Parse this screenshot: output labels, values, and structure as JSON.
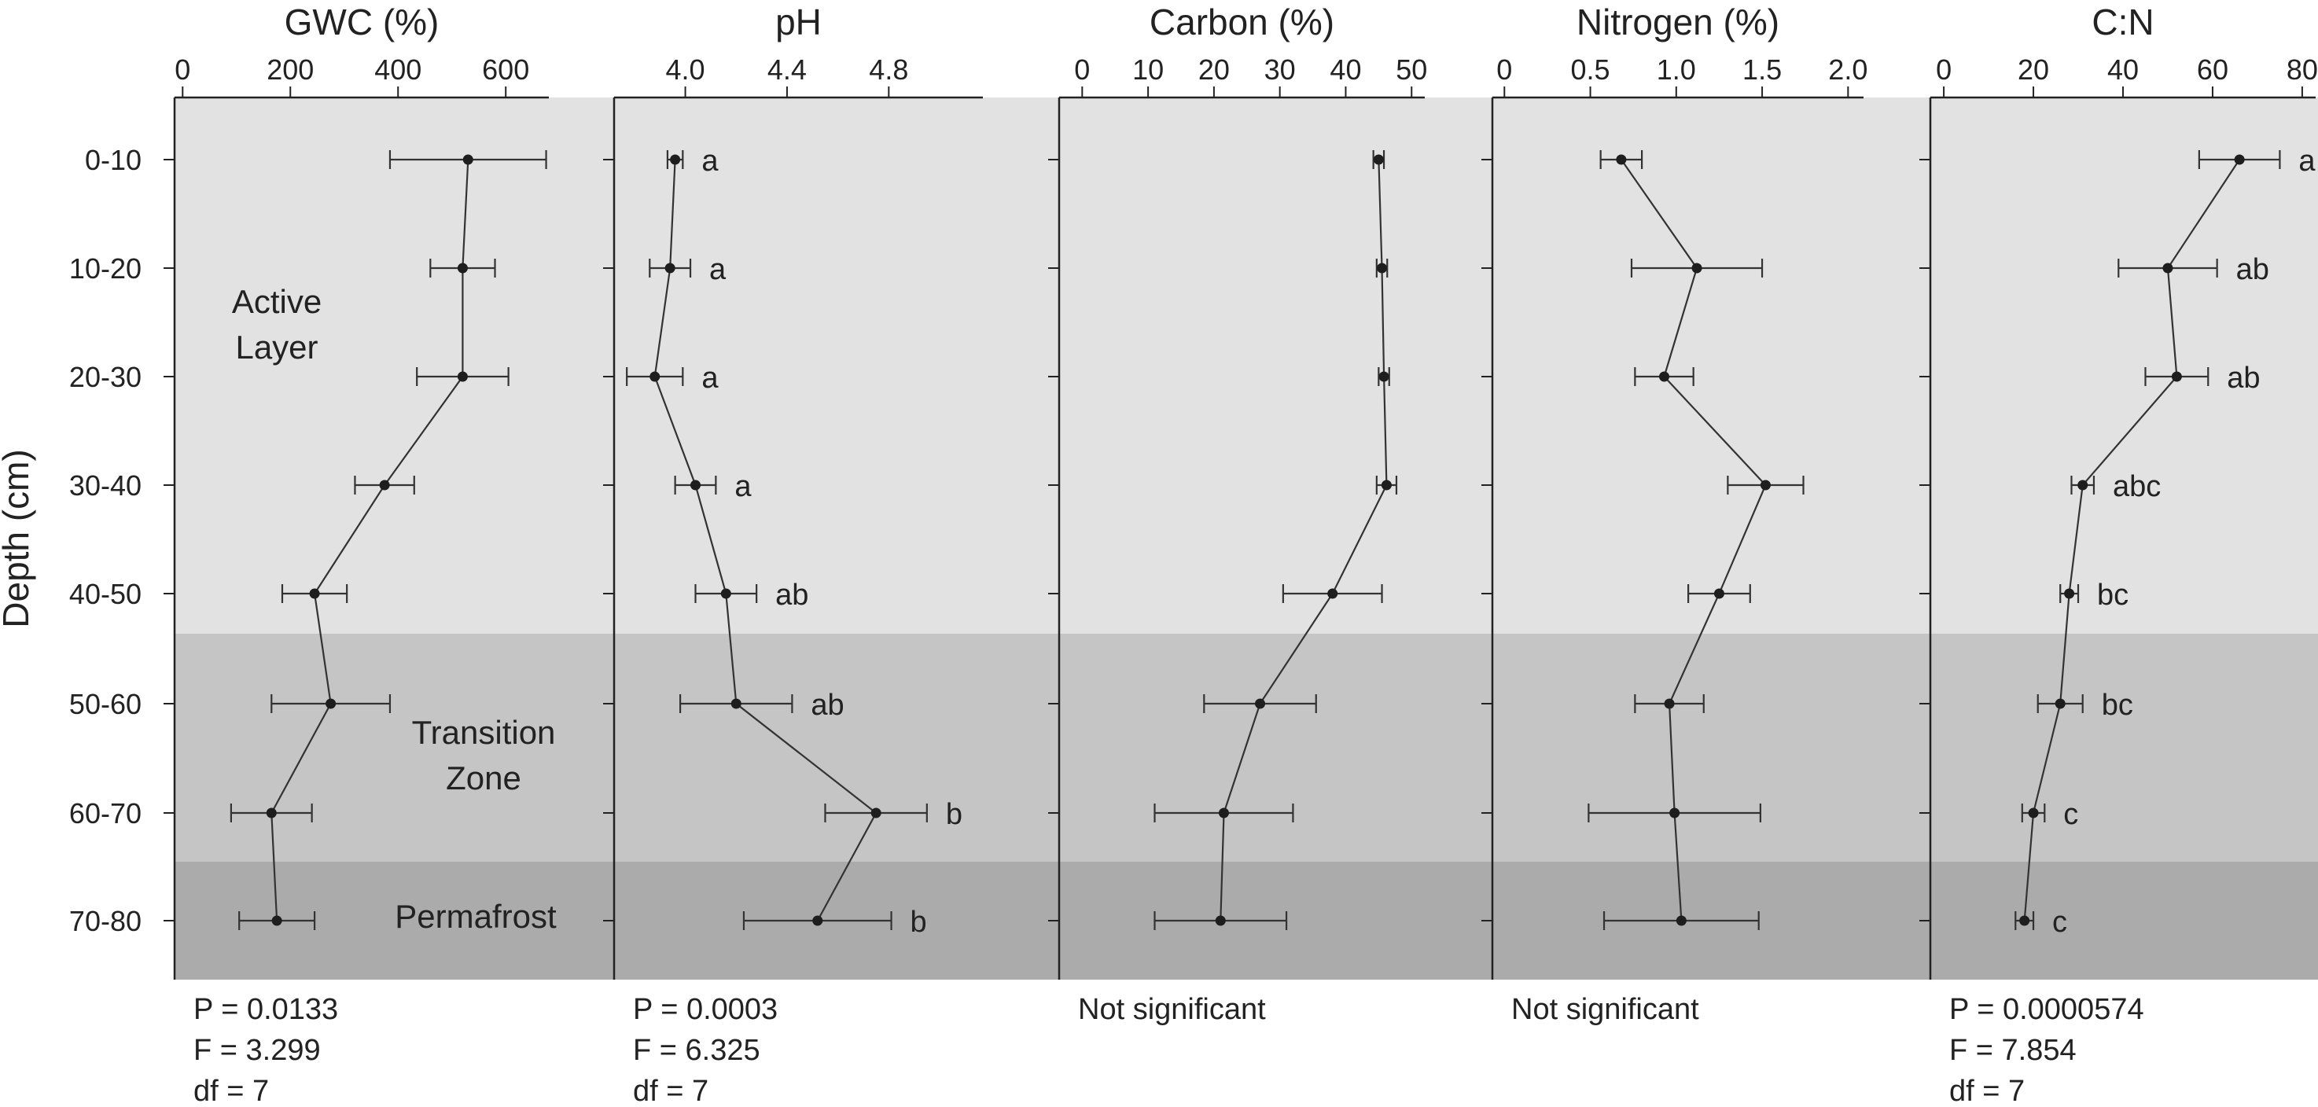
{
  "chart_data": {
    "type": "line",
    "orientation": "depth-profile",
    "ylabel": "Depth (cm)",
    "depth_categories": [
      "0-10",
      "10-20",
      "20-30",
      "30-40",
      "40-50",
      "50-60",
      "60-70",
      "70-80"
    ],
    "zones": [
      {
        "label_lines": [
          "Active",
          "Layer"
        ],
        "from": "0-10",
        "to": "40-50",
        "color": "#e2e2e2"
      },
      {
        "label_lines": [
          "Transition",
          "Zone"
        ],
        "from": "50-60",
        "to": "60-70",
        "color": "#c6c5c6"
      },
      {
        "label_lines": [
          "Permafrost"
        ],
        "from": "70-80",
        "to": "70-80",
        "color": "#ababab"
      }
    ],
    "panels": [
      {
        "title": "GWC (%)",
        "xlim": [
          -15,
          680
        ],
        "ticks": [
          0,
          200,
          400,
          600
        ],
        "tick_labels": [
          "0",
          "200",
          "400",
          "600"
        ],
        "values": [
          530,
          520,
          520,
          375,
          245,
          275,
          165,
          175
        ],
        "errors": [
          145,
          60,
          85,
          55,
          60,
          110,
          75,
          70
        ],
        "letters": [],
        "stats": [
          "P = 0.0133",
          "F = 3.299",
          "df = 7"
        ]
      },
      {
        "title": "pH",
        "xlim": [
          3.72,
          5.17
        ],
        "ticks": [
          4.0,
          4.4,
          4.8
        ],
        "tick_labels": [
          "4.0",
          "4.4",
          "4.8"
        ],
        "values": [
          3.96,
          3.94,
          3.88,
          4.04,
          4.16,
          4.2,
          4.75,
          4.52
        ],
        "errors": [
          0.03,
          0.08,
          0.11,
          0.08,
          0.12,
          0.22,
          0.2,
          0.29
        ],
        "letters": [
          "a",
          "a",
          "a",
          "a",
          "ab",
          "ab",
          "b",
          "b"
        ],
        "stats": [
          "P = 0.0003",
          "F = 6.325",
          "df = 7"
        ]
      },
      {
        "title": "Carbon (%)",
        "xlim": [
          -3.5,
          52
        ],
        "ticks": [
          0,
          10,
          20,
          30,
          40,
          50
        ],
        "tick_labels": [
          "0",
          "10",
          "20",
          "30",
          "40",
          "50"
        ],
        "values": [
          45,
          45.5,
          45.8,
          46.2,
          38,
          27,
          21.5,
          21
        ],
        "errors": [
          0.8,
          0.8,
          0.8,
          1.5,
          7.5,
          8.5,
          10.5,
          10
        ],
        "letters": [],
        "stats": [
          "Not significant"
        ]
      },
      {
        "title": "Nitrogen (%)",
        "xlim": [
          -0.07,
          2.09
        ],
        "ticks": [
          0,
          0.5,
          1.0,
          1.5,
          2.0
        ],
        "tick_labels": [
          "0",
          "0.5",
          "1.0",
          "1.5",
          "2.0"
        ],
        "values": [
          0.68,
          1.12,
          0.93,
          1.52,
          1.25,
          0.96,
          0.99,
          1.03
        ],
        "errors": [
          0.12,
          0.38,
          0.17,
          0.22,
          0.18,
          0.2,
          0.5,
          0.45
        ],
        "letters": [],
        "stats": [
          "Not significant"
        ]
      },
      {
        "title": "C:N",
        "xlim": [
          -3,
          83
        ],
        "ticks": [
          0,
          20,
          40,
          60,
          80
        ],
        "tick_labels": [
          "0",
          "20",
          "40",
          "60",
          "80"
        ],
        "values": [
          66,
          50,
          52,
          31,
          28,
          26,
          20,
          18
        ],
        "errors": [
          9,
          11,
          7,
          2.5,
          2,
          5,
          2.5,
          2
        ],
        "letters": [
          "a",
          "ab",
          "ab",
          "abc",
          "bc",
          "bc",
          "c",
          "c"
        ],
        "stats": [
          "P = 0.0000574",
          "F = 7.854",
          "df = 7"
        ]
      }
    ]
  }
}
